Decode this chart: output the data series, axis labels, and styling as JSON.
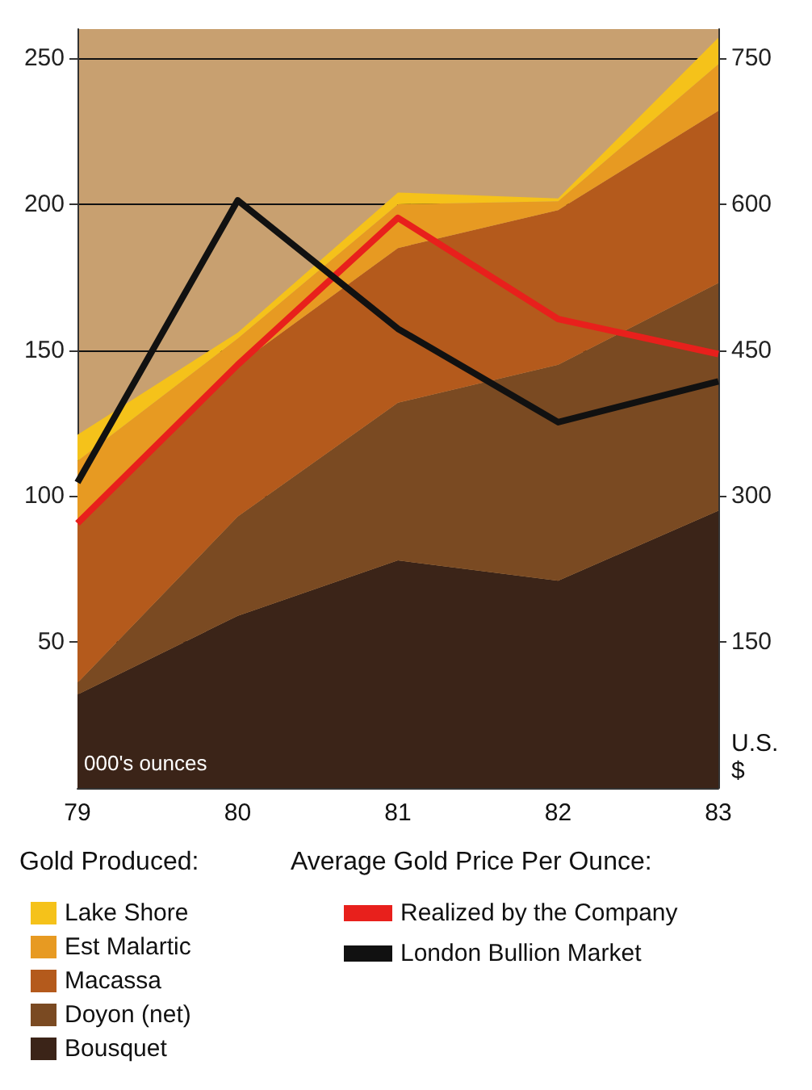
{
  "chart_data": {
    "type": "area",
    "stacked": true,
    "categories": [
      "79",
      "80",
      "81",
      "82",
      "83"
    ],
    "ylabel": "000's ounces",
    "y2label": "U.S. $",
    "legend_title": "Gold Produced:",
    "annotations": [
      "Average Gold Price Per Ounce:"
    ],
    "ylim": [
      0,
      260
    ],
    "yticks": [
      50,
      100,
      150,
      200,
      250
    ],
    "y2lim": [
      0,
      780
    ],
    "y2ticks": [
      150,
      300,
      450,
      600,
      750
    ],
    "grid": "y",
    "legend": "bottom",
    "series": [
      {
        "name": "Bousquet",
        "type": "area",
        "color": "#3b2418",
        "values": [
          32,
          59,
          78,
          71,
          95
        ]
      },
      {
        "name": "Doyon (net)",
        "type": "area",
        "color": "#7a4a22",
        "values": [
          4,
          34,
          54,
          74,
          78
        ]
      },
      {
        "name": "Macassa",
        "type": "area",
        "color": "#b45a1c",
        "values": [
          56,
          52,
          53,
          53,
          59
        ]
      },
      {
        "name": "Est Malartic",
        "type": "area",
        "color": "#e79a22",
        "values": [
          20,
          9,
          15,
          3,
          16
        ]
      },
      {
        "name": "Lake Shore",
        "type": "area",
        "color": "#f5c21a",
        "values": [
          9,
          2,
          4,
          1,
          9
        ]
      },
      {
        "name": "Realized by the Company",
        "type": "line",
        "axis": "y2",
        "color": "#e8201c",
        "values": [
          272,
          435,
          586,
          482,
          446
        ]
      },
      {
        "name": "London Bullion Market",
        "type": "line",
        "axis": "y2",
        "color": "#111111",
        "values": [
          314,
          604,
          472,
          376,
          418
        ]
      }
    ]
  }
}
